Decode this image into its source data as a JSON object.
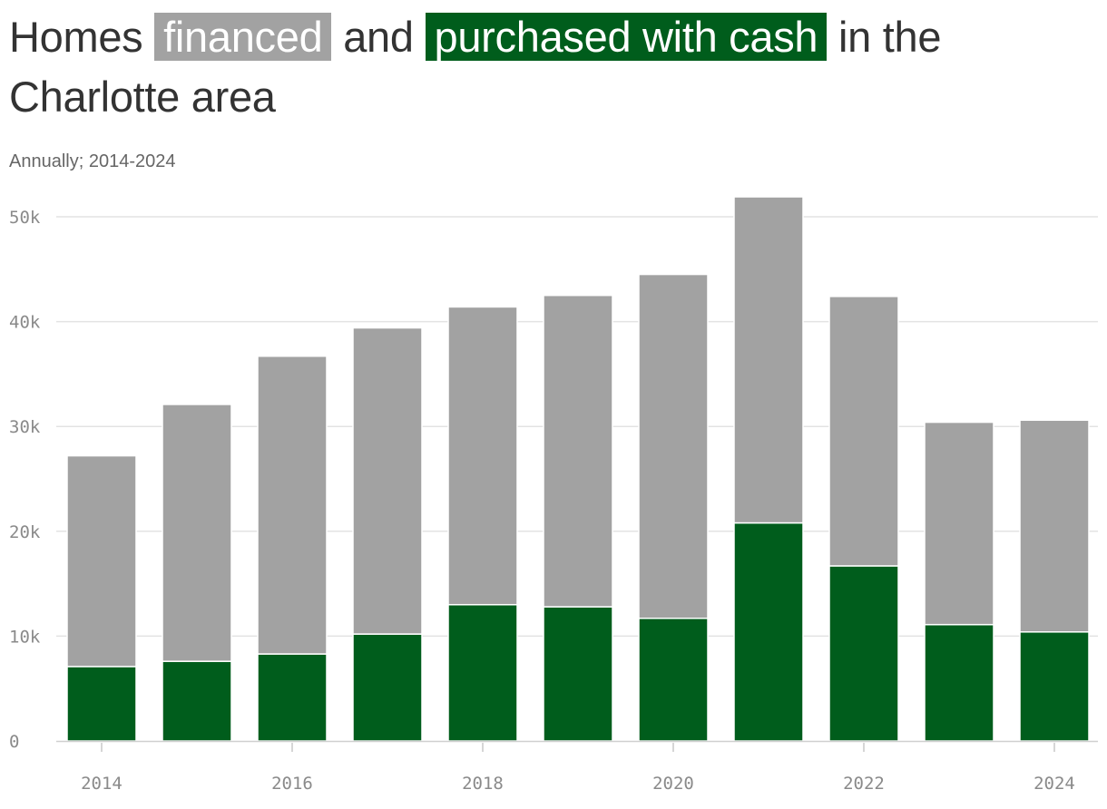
{
  "title": {
    "part1": "Homes",
    "financed": "financed",
    "part2": "and",
    "cash": "purchased with cash",
    "part3": "in the Charlotte area"
  },
  "subtitle": "Annually; 2014-2024",
  "colors": {
    "financed": "#a2a2a2",
    "cash": "#005d1c",
    "grid": "#e3e3e3",
    "axis_text": "#8a8a8a"
  },
  "chart_data": {
    "type": "bar",
    "stacked": true,
    "title": "Homes financed and purchased with cash in the Charlotte area",
    "subtitle": "Annually; 2014-2024",
    "categories": [
      "2014",
      "2015",
      "2016",
      "2017",
      "2018",
      "2019",
      "2020",
      "2021",
      "2022",
      "2023",
      "2024"
    ],
    "series": [
      {
        "name": "purchased with cash",
        "color": "#005d1c",
        "values": [
          7100,
          7600,
          8300,
          10200,
          13000,
          12800,
          11700,
          20800,
          16700,
          11100,
          10400
        ]
      },
      {
        "name": "financed",
        "color": "#a2a2a2",
        "values": [
          20100,
          24500,
          28400,
          29200,
          28400,
          29700,
          32800,
          31100,
          25700,
          19300,
          20200
        ]
      }
    ],
    "ylim": [
      0,
      52000
    ],
    "yticks": [
      0,
      10000,
      20000,
      30000,
      40000,
      50000
    ],
    "ytick_labels": [
      "0",
      "10k",
      "20k",
      "30k",
      "40k",
      "50k"
    ],
    "xtick_labels": [
      "2014",
      "2016",
      "2018",
      "2020",
      "2022",
      "2024"
    ],
    "grid": true,
    "legend": "in title",
    "xlabel": "",
    "ylabel": ""
  }
}
